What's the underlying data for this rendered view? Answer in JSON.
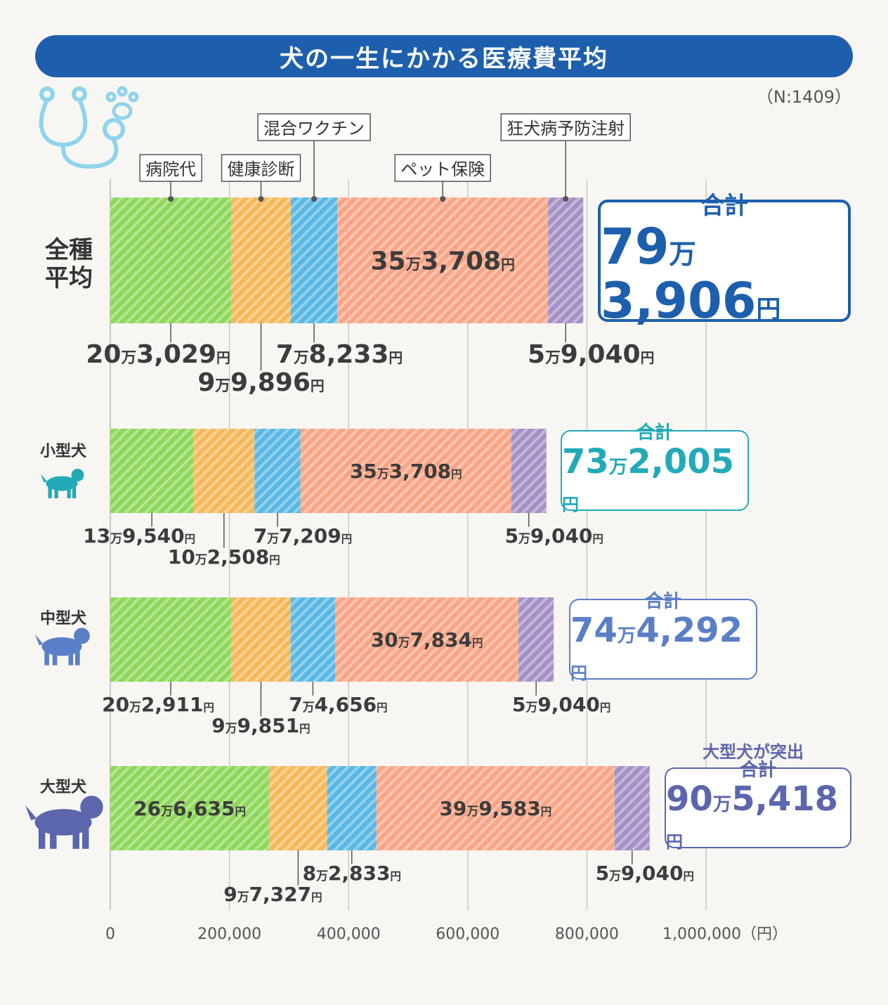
{
  "title": "犬の一生にかかる医療費平均",
  "sample": "（N:1409）",
  "row_labels": {
    "all": [
      "全種",
      "平均"
    ],
    "small": "小型犬",
    "medium": "中型犬",
    "large": "大型犬"
  },
  "callout": "大型犬が突出",
  "totals": [
    {
      "label": "合計",
      "man": "79",
      "rest": "3,906",
      "yen": "円",
      "man_unit": "万"
    },
    {
      "label": "合計",
      "man": "73",
      "rest": "2,005",
      "yen": "円",
      "man_unit": "万"
    },
    {
      "label": "合計",
      "man": "74",
      "rest": "4,292",
      "yen": "円",
      "man_unit": "万"
    },
    {
      "label": "合計",
      "man": "90",
      "rest": "5,418",
      "yen": "円",
      "man_unit": "万"
    }
  ],
  "colors": {
    "banner": "#1d5fad",
    "hospital": "#8ed75a",
    "checkup": "#f6b85a",
    "vaccine": "#59b8e4",
    "insurance": "#f9a585",
    "rabies": "#a590c6",
    "total_all": "#1d5fad",
    "total_small": "#22aab8",
    "total_medium": "#5b7fc6",
    "total_large": "#5c66ad"
  },
  "chart_data": {
    "type": "bar",
    "orientation": "horizontal",
    "stacked": true,
    "unit": "円",
    "categories": [
      "全種平均",
      "小型犬",
      "中型犬",
      "大型犬"
    ],
    "series": [
      {
        "name": "病院代",
        "values": [
          203029,
          139540,
          202911,
          266635
        ],
        "labels": [
          "20万3,029円",
          "13万9,540円",
          "20万2,911円",
          "26万6,635円"
        ]
      },
      {
        "name": "健康診断",
        "values": [
          99896,
          102508,
          99851,
          97327
        ],
        "labels": [
          "9万9,896円",
          "10万2,508円",
          "9万9,851円",
          "9万7,327円"
        ]
      },
      {
        "name": "混合ワクチン",
        "values": [
          78233,
          77209,
          74656,
          82833
        ],
        "labels": [
          "7万8,233円",
          "7万7,209円",
          "7万4,656円",
          "8万2,833円"
        ]
      },
      {
        "name": "ペット保険",
        "values": [
          353708,
          353708,
          307834,
          399583
        ],
        "labels": [
          "35万3,708円",
          "35万3,708円",
          "30万7,834円",
          "39万9,583円"
        ]
      },
      {
        "name": "狂犬病予防注射",
        "values": [
          59040,
          59040,
          59040,
          59040
        ],
        "labels": [
          "5万9,040円",
          "5万9,040円",
          "5万9,040円",
          "5万9,040円"
        ]
      }
    ],
    "totals": [
      793906,
      732005,
      744292,
      905418
    ],
    "xlim": [
      0,
      1000000
    ],
    "x_ticks": [
      "0",
      "200,000",
      "400,000",
      "600,000",
      "800,000",
      "1,000,000（円）"
    ],
    "x_tick_values": [
      0,
      200000,
      400000,
      600000,
      800000,
      1000000
    ],
    "legend": "callouts above top bar",
    "grid": true
  }
}
